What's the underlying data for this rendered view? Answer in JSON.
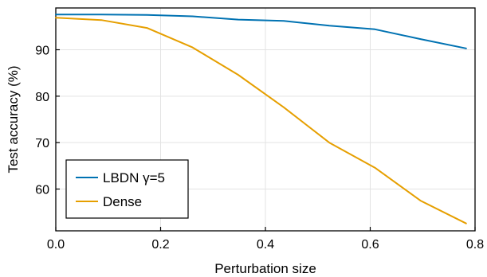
{
  "chart_data": {
    "type": "line",
    "xlabel": "Perturbation size",
    "ylabel": "Test accuracy (%)",
    "xlim": [
      0.0,
      0.8
    ],
    "ylim": [
      51.0,
      99.0
    ],
    "xticks": [
      0.0,
      0.2,
      0.4,
      0.6,
      0.8
    ],
    "xtick_labels": [
      "0.0",
      "0.2",
      "0.4",
      "0.6",
      "0.8"
    ],
    "yticks": [
      60,
      70,
      80,
      90
    ],
    "ytick_labels": [
      "60",
      "70",
      "80",
      "90"
    ],
    "grid": true,
    "legend_position": "bottom-left",
    "series": [
      {
        "name": "LBDN γ=5",
        "color": "#0072b2",
        "x": [
          0.0,
          0.087,
          0.174,
          0.261,
          0.348,
          0.435,
          0.522,
          0.609,
          0.696,
          0.783
        ],
        "y": [
          97.6,
          97.6,
          97.5,
          97.2,
          96.5,
          96.2,
          95.2,
          94.4,
          92.3,
          90.3
        ]
      },
      {
        "name": "Dense",
        "color": "#e69f00",
        "x": [
          0.0,
          0.087,
          0.174,
          0.261,
          0.348,
          0.435,
          0.522,
          0.609,
          0.696,
          0.783
        ],
        "y": [
          96.9,
          96.4,
          94.7,
          90.5,
          84.6,
          77.6,
          70.0,
          64.6,
          57.5,
          52.6
        ]
      }
    ]
  }
}
